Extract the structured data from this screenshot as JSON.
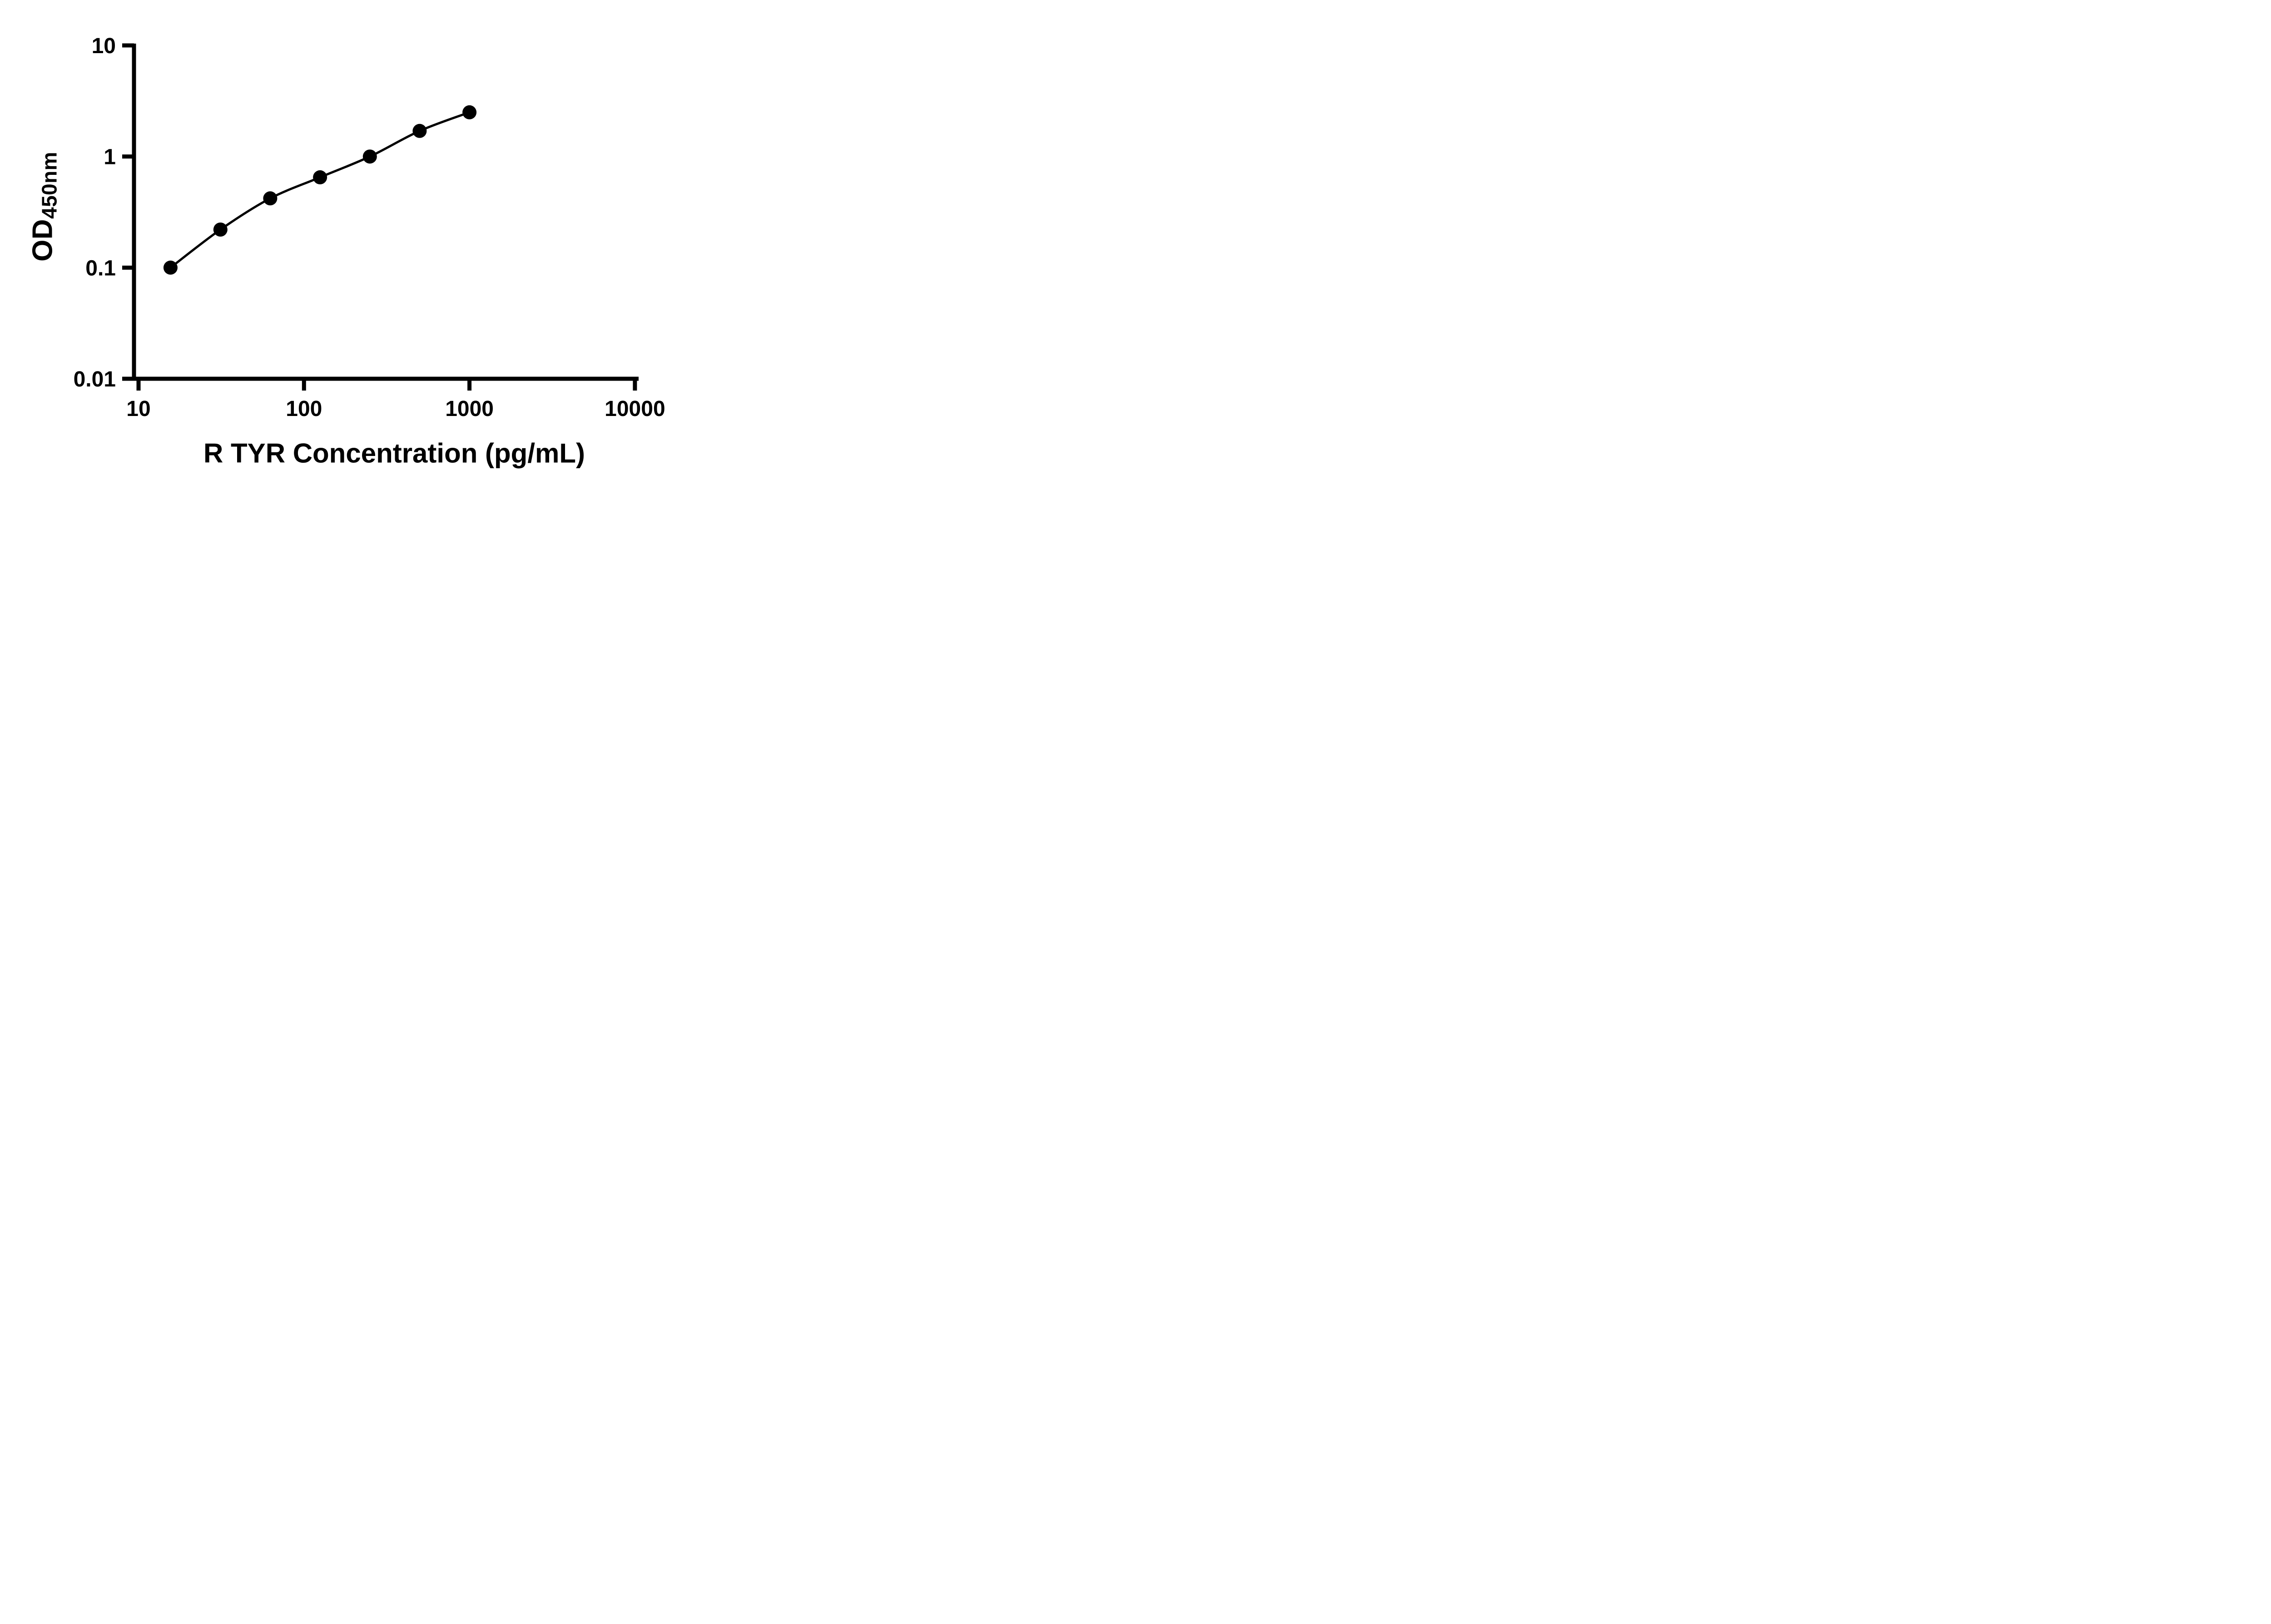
{
  "chart_data": {
    "type": "scatter",
    "subtype": "standard-curve-with-fit-line",
    "xlabel": "R TYR Concentration (pg/mL)",
    "ylabel_main": "OD",
    "ylabel_sub": "450nm",
    "x_scale": "log10",
    "y_scale": "log10",
    "xlim": [
      10,
      10000
    ],
    "ylim": [
      0.01,
      10
    ],
    "x_ticks": [
      10,
      100,
      1000,
      10000
    ],
    "x_tick_labels": [
      "10",
      "100",
      "1000",
      "10000"
    ],
    "y_ticks": [
      10,
      1,
      0.1,
      0.01
    ],
    "y_tick_labels": [
      "10",
      "1",
      "0.1",
      "0.01"
    ],
    "points": [
      {
        "x": 15.6,
        "y": 0.1
      },
      {
        "x": 31.25,
        "y": 0.22
      },
      {
        "x": 62.5,
        "y": 0.42
      },
      {
        "x": 125,
        "y": 0.65
      },
      {
        "x": 250,
        "y": 1.0
      },
      {
        "x": 500,
        "y": 1.7
      },
      {
        "x": 1000,
        "y": 2.5
      }
    ],
    "grid": false,
    "legend": "none",
    "marker_color": "#000000",
    "line_color": "#000000",
    "axis_color": "#000000",
    "background_color": "#ffffff"
  }
}
